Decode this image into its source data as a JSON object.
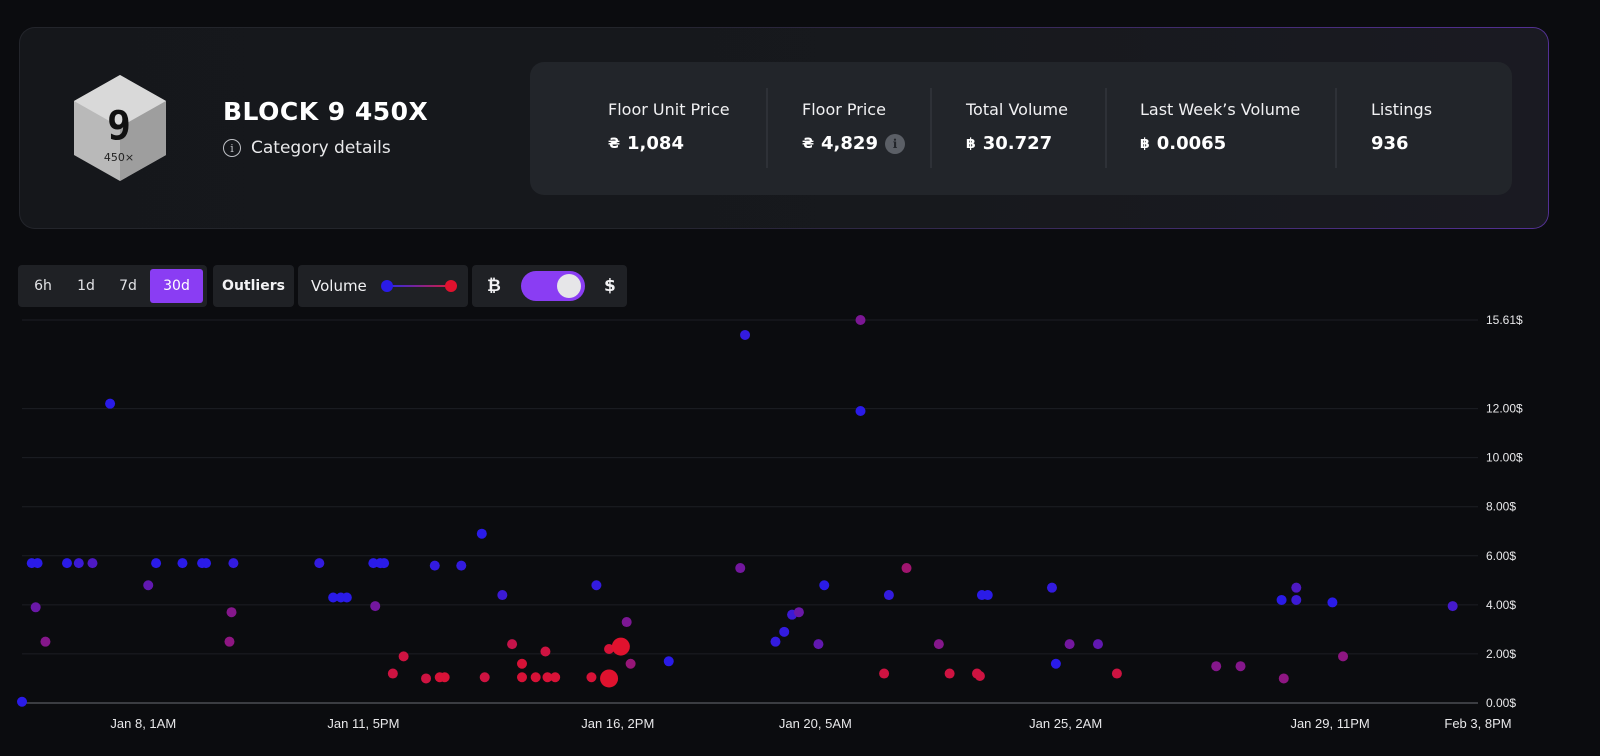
{
  "header": {
    "title": "BLOCK 9 450X",
    "details_label": "Category details",
    "logo_text_main": "9",
    "logo_text_sub": "450×",
    "info_icon_text": "i"
  },
  "stats": [
    {
      "label": "Floor Unit Price",
      "currency": "₴",
      "value": "1,084",
      "info": false
    },
    {
      "label": "Floor Price",
      "currency": "₴",
      "value": "4,829",
      "info": true
    },
    {
      "label": "Total Volume",
      "currency": "฿",
      "value": "30.727",
      "info": false
    },
    {
      "label": "Last Week’s Volume",
      "currency": "฿",
      "value": "0.0065",
      "info": false
    },
    {
      "label": "Listings",
      "currency": "",
      "value": "936",
      "info": false
    }
  ],
  "toolbar": {
    "ranges": [
      "6h",
      "1d",
      "7d",
      "30d"
    ],
    "active_range": "30d",
    "outliers_label": "Outliers",
    "volume_label": "Volume",
    "btc_symbol": "₿",
    "usd_symbol": "$",
    "currency_toggle": "USD"
  },
  "colors": {
    "accent": "#8a3df3",
    "low_volume": "#2a1be8",
    "high_volume": "#e0122e"
  },
  "chart_data": {
    "type": "scatter",
    "y_ticks": [
      "0.00$",
      "2.00$",
      "4.00$",
      "6.00$",
      "8.00$",
      "10.00$",
      "12.00$",
      "15.61$"
    ],
    "y_tick_values": [
      0,
      2,
      4,
      6,
      8,
      10,
      12,
      15.61
    ],
    "x_ticks": [
      "Jan 8, 1AM",
      "Jan 11, 5PM",
      "Jan 16, 2PM",
      "Jan 20, 5AM",
      "Jan 25, 2AM",
      "Jan 29, 11PM",
      "Feb 3, 8PM"
    ],
    "x_tick_pos": [
      0.0833,
      0.2345,
      0.4092,
      0.5449,
      0.7168,
      0.8984,
      1.0
    ],
    "ylim": [
      0,
      15.61
    ],
    "grid": true,
    "color_encoding": "volume (blue low → red high)",
    "points": [
      {
        "x": 0.0,
        "y": 0.05,
        "v": 0.0
      },
      {
        "x": 0.0067,
        "y": 5.7,
        "v": 0.0
      },
      {
        "x": 0.0107,
        "y": 5.7,
        "v": 0.0
      },
      {
        "x": 0.0094,
        "y": 3.9,
        "v": 0.35
      },
      {
        "x": 0.0161,
        "y": 2.5,
        "v": 0.5
      },
      {
        "x": 0.0309,
        "y": 5.7,
        "v": 0.0
      },
      {
        "x": 0.039,
        "y": 5.7,
        "v": 0.1
      },
      {
        "x": 0.0484,
        "y": 5.7,
        "v": 0.2
      },
      {
        "x": 0.0605,
        "y": 12.2,
        "v": 0.0
      },
      {
        "x": 0.0867,
        "y": 4.8,
        "v": 0.3
      },
      {
        "x": 0.0921,
        "y": 5.7,
        "v": 0.0
      },
      {
        "x": 0.1102,
        "y": 5.7,
        "v": 0.0
      },
      {
        "x": 0.1237,
        "y": 5.7,
        "v": 0.0
      },
      {
        "x": 0.1264,
        "y": 5.7,
        "v": 0.0
      },
      {
        "x": 0.1452,
        "y": 5.7,
        "v": 0.05
      },
      {
        "x": 0.1439,
        "y": 3.7,
        "v": 0.5
      },
      {
        "x": 0.1425,
        "y": 2.5,
        "v": 0.55
      },
      {
        "x": 0.2042,
        "y": 5.7,
        "v": 0.05
      },
      {
        "x": 0.2137,
        "y": 4.3,
        "v": 0.0
      },
      {
        "x": 0.219,
        "y": 4.3,
        "v": 0.0
      },
      {
        "x": 0.2231,
        "y": 4.3,
        "v": 0.0
      },
      {
        "x": 0.2413,
        "y": 5.7,
        "v": 0.0
      },
      {
        "x": 0.246,
        "y": 5.7,
        "v": 0.0
      },
      {
        "x": 0.2487,
        "y": 5.7,
        "v": 0.0
      },
      {
        "x": 0.2426,
        "y": 3.95,
        "v": 0.4
      },
      {
        "x": 0.2547,
        "y": 1.2,
        "v": 0.9
      },
      {
        "x": 0.2621,
        "y": 1.9,
        "v": 0.9
      },
      {
        "x": 0.2775,
        "y": 1.0,
        "v": 0.9
      },
      {
        "x": 0.2869,
        "y": 1.05,
        "v": 0.95
      },
      {
        "x": 0.2903,
        "y": 1.05,
        "v": 0.95
      },
      {
        "x": 0.2835,
        "y": 5.6,
        "v": 0.05
      },
      {
        "x": 0.3017,
        "y": 5.6,
        "v": 0.05
      },
      {
        "x": 0.3158,
        "y": 6.9,
        "v": 0.0
      },
      {
        "x": 0.3178,
        "y": 1.05,
        "v": 0.9
      },
      {
        "x": 0.3299,
        "y": 4.4,
        "v": 0.1
      },
      {
        "x": 0.3366,
        "y": 2.4,
        "v": 0.85
      },
      {
        "x": 0.3434,
        "y": 1.6,
        "v": 0.95
      },
      {
        "x": 0.3434,
        "y": 1.05,
        "v": 0.95
      },
      {
        "x": 0.3528,
        "y": 1.05,
        "v": 0.95
      },
      {
        "x": 0.3595,
        "y": 2.1,
        "v": 0.9
      },
      {
        "x": 0.3609,
        "y": 1.05,
        "v": 0.95
      },
      {
        "x": 0.3662,
        "y": 1.05,
        "v": 0.95
      },
      {
        "x": 0.3911,
        "y": 1.05,
        "v": 0.95
      },
      {
        "x": 0.3945,
        "y": 4.8,
        "v": 0.05
      },
      {
        "x": 0.4032,
        "y": 2.2,
        "v": 0.95
      },
      {
        "x": 0.4032,
        "y": 1.0,
        "v": 1.0,
        "big": true
      },
      {
        "x": 0.4113,
        "y": 2.3,
        "v": 1.0,
        "big": true
      },
      {
        "x": 0.4153,
        "y": 3.3,
        "v": 0.45
      },
      {
        "x": 0.418,
        "y": 1.6,
        "v": 0.6
      },
      {
        "x": 0.4442,
        "y": 1.7,
        "v": 0.0
      },
      {
        "x": 0.4966,
        "y": 15.0,
        "v": 0.05
      },
      {
        "x": 0.4933,
        "y": 5.5,
        "v": 0.4
      },
      {
        "x": 0.5175,
        "y": 2.5,
        "v": 0.05
      },
      {
        "x": 0.5235,
        "y": 2.9,
        "v": 0.05
      },
      {
        "x": 0.5289,
        "y": 3.6,
        "v": 0.1
      },
      {
        "x": 0.5336,
        "y": 3.7,
        "v": 0.35
      },
      {
        "x": 0.547,
        "y": 2.4,
        "v": 0.3
      },
      {
        "x": 0.551,
        "y": 4.8,
        "v": 0.0
      },
      {
        "x": 0.5759,
        "y": 11.9,
        "v": 0.0
      },
      {
        "x": 0.5759,
        "y": 15.61,
        "v": 0.45
      },
      {
        "x": 0.5921,
        "y": 1.2,
        "v": 0.9
      },
      {
        "x": 0.5954,
        "y": 4.4,
        "v": 0.05
      },
      {
        "x": 0.6075,
        "y": 5.5,
        "v": 0.65
      },
      {
        "x": 0.6297,
        "y": 2.4,
        "v": 0.5
      },
      {
        "x": 0.6371,
        "y": 1.2,
        "v": 0.9
      },
      {
        "x": 0.6559,
        "y": 1.2,
        "v": 0.9
      },
      {
        "x": 0.6579,
        "y": 1.1,
        "v": 0.9
      },
      {
        "x": 0.6593,
        "y": 4.4,
        "v": 0.0
      },
      {
        "x": 0.6633,
        "y": 4.4,
        "v": 0.0
      },
      {
        "x": 0.7074,
        "y": 4.7,
        "v": 0.05
      },
      {
        "x": 0.7101,
        "y": 1.6,
        "v": 0.0
      },
      {
        "x": 0.7195,
        "y": 2.4,
        "v": 0.4
      },
      {
        "x": 0.739,
        "y": 2.4,
        "v": 0.3
      },
      {
        "x": 0.752,
        "y": 1.2,
        "v": 0.9
      },
      {
        "x": 0.8202,
        "y": 1.5,
        "v": 0.5
      },
      {
        "x": 0.8369,
        "y": 1.5,
        "v": 0.5
      },
      {
        "x": 0.8651,
        "y": 4.2,
        "v": 0.0
      },
      {
        "x": 0.8666,
        "y": 1.0,
        "v": 0.55
      },
      {
        "x": 0.8752,
        "y": 4.7,
        "v": 0.2
      },
      {
        "x": 0.8752,
        "y": 4.2,
        "v": 0.1
      },
      {
        "x": 0.9,
        "y": 4.1,
        "v": 0.0
      },
      {
        "x": 0.9073,
        "y": 1.9,
        "v": 0.55
      },
      {
        "x": 0.9826,
        "y": 3.95,
        "v": 0.15
      }
    ]
  }
}
